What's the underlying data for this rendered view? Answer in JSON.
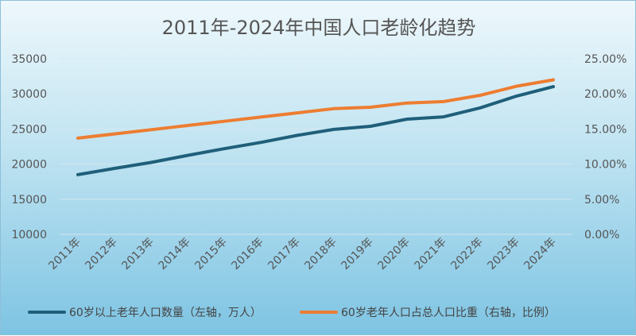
{
  "chart_data": {
    "type": "line",
    "title": "2011年-2024年中国人口老龄化趋势",
    "categories": [
      "2011年",
      "2012年",
      "2013年",
      "2014年",
      "2015年",
      "2016年",
      "2017年",
      "2018年",
      "2019年",
      "2020年",
      "2021年",
      "2022年",
      "2023年",
      "2024年"
    ],
    "series": [
      {
        "name": "60岁以上老年人口数量（左轴，万人）",
        "axis": "left",
        "color": "#1f5f7a",
        "values": [
          18500,
          19390,
          20243,
          21242,
          22200,
          23086,
          24090,
          24949,
          25388,
          26402,
          26736,
          28004,
          29697,
          31031
        ]
      },
      {
        "name": "60岁老年人口占总人口比重（右轴，比例）",
        "axis": "right",
        "color": "#ed7d31",
        "values": [
          13.7,
          14.3,
          14.9,
          15.5,
          16.1,
          16.7,
          17.3,
          17.9,
          18.1,
          18.7,
          18.9,
          19.8,
          21.1,
          22.0
        ]
      }
    ],
    "y_left": {
      "min": 10000,
      "max": 35000,
      "ticks": [
        "35000",
        "30000",
        "25000",
        "20000",
        "15000",
        "10000"
      ]
    },
    "y_right": {
      "min": 0,
      "max": 25,
      "ticks": [
        "25.00%",
        "20.00%",
        "15.00%",
        "10.00%",
        "5.00%",
        "0.00%"
      ]
    },
    "grid": true,
    "legend_position": "bottom"
  }
}
